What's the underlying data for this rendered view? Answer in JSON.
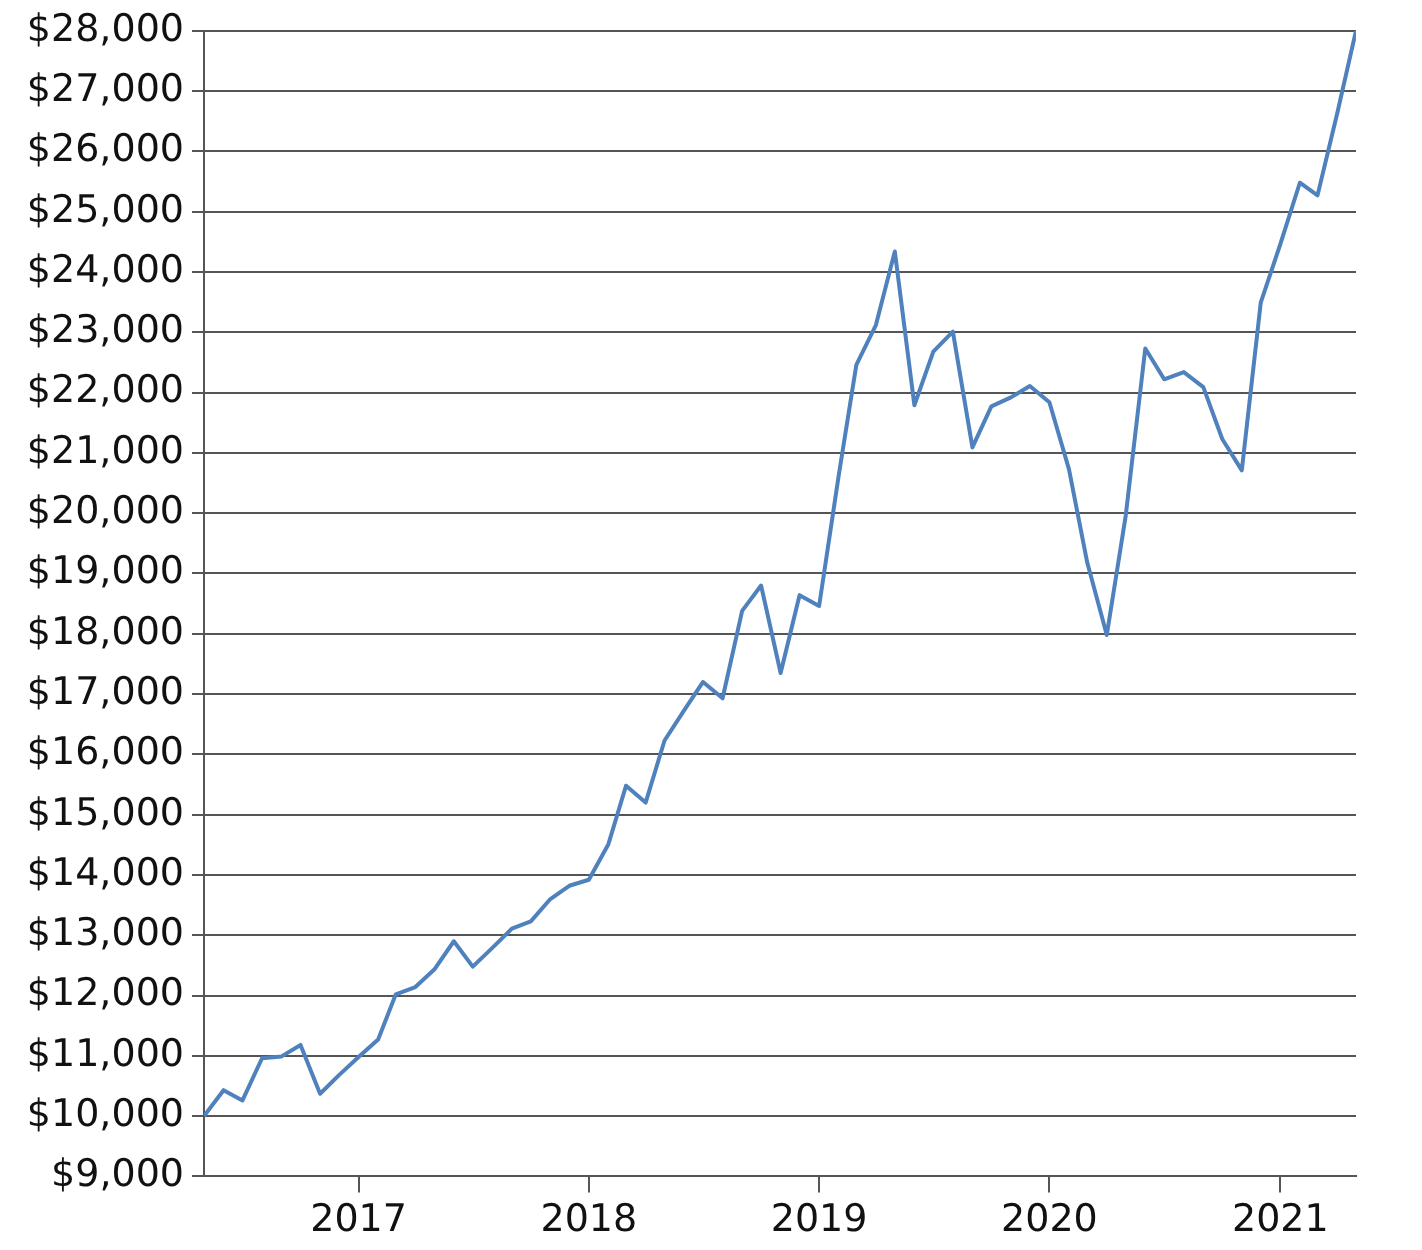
{
  "chart_data": {
    "type": "line",
    "x": [
      "2016-05",
      "2016-06",
      "2016-07",
      "2016-08",
      "2016-09",
      "2016-10",
      "2016-11",
      "2016-12",
      "2017-01",
      "2017-02",
      "2017-03",
      "2017-04",
      "2017-05",
      "2017-06",
      "2017-07",
      "2017-08",
      "2017-09",
      "2017-10",
      "2017-11",
      "2017-12",
      "2018-01",
      "2018-02",
      "2018-03",
      "2018-04",
      "2018-05",
      "2018-06",
      "2018-07",
      "2018-08",
      "2018-09",
      "2018-10",
      "2018-11",
      "2018-12",
      "2019-01",
      "2019-02",
      "2019-03",
      "2019-04",
      "2019-05",
      "2019-06",
      "2019-07",
      "2019-08",
      "2019-09",
      "2019-10",
      "2019-11",
      "2019-12",
      "2020-01",
      "2020-02",
      "2020-03",
      "2020-04",
      "2020-05",
      "2020-06",
      "2020-07",
      "2020-08",
      "2020-09",
      "2020-10",
      "2020-11",
      "2020-12",
      "2021-01",
      "2021-02",
      "2021-03",
      "2021-04",
      "2021-05"
    ],
    "series": [
      {
        "color": "#4f81bd",
        "values": [
          10000,
          10430,
          10260,
          10960,
          10990,
          11180,
          10370,
          10680,
          10980,
          11270,
          12020,
          12140,
          12430,
          12900,
          12480,
          12790,
          13110,
          13230,
          13600,
          13820,
          13920,
          14510,
          15480,
          15200,
          16230,
          16730,
          17200,
          16930,
          18380,
          18800,
          17350,
          18640,
          18460,
          20620,
          22460,
          23120,
          24340,
          21790,
          22680,
          23010,
          21090,
          21770,
          21920,
          22110,
          21840,
          20730,
          19180,
          17980,
          19960,
          22730,
          22220,
          22340,
          22090,
          21230,
          20710,
          23490,
          24460,
          25480,
          25270,
          26620,
          28000
        ]
      }
    ],
    "xlim": [
      "2016-05",
      "2021-05"
    ],
    "xticks": [
      {
        "value": "2017-01",
        "label": "2017"
      },
      {
        "value": "2018-01",
        "label": "2018"
      },
      {
        "value": "2019-01",
        "label": "2019"
      },
      {
        "value": "2020-01",
        "label": "2020"
      },
      {
        "value": "2021-01",
        "label": "2021"
      }
    ],
    "ylim": [
      9000,
      28000
    ],
    "yticks": [
      {
        "value": 9000,
        "label": "$9,000"
      },
      {
        "value": 10000,
        "label": "$10,000"
      },
      {
        "value": 11000,
        "label": "$11,000"
      },
      {
        "value": 12000,
        "label": "$12,000"
      },
      {
        "value": 13000,
        "label": "$13,000"
      },
      {
        "value": 14000,
        "label": "$14,000"
      },
      {
        "value": 15000,
        "label": "$15,000"
      },
      {
        "value": 16000,
        "label": "$16,000"
      },
      {
        "value": 17000,
        "label": "$17,000"
      },
      {
        "value": 18000,
        "label": "$18,000"
      },
      {
        "value": 19000,
        "label": "$19,000"
      },
      {
        "value": 20000,
        "label": "$20,000"
      },
      {
        "value": 21000,
        "label": "$21,000"
      },
      {
        "value": 22000,
        "label": "$22,000"
      },
      {
        "value": 23000,
        "label": "$23,000"
      },
      {
        "value": 24000,
        "label": "$24,000"
      },
      {
        "value": 25000,
        "label": "$25,000"
      },
      {
        "value": 26000,
        "label": "$26,000"
      },
      {
        "value": 27000,
        "label": "$27,000"
      },
      {
        "value": 28000,
        "label": "$28,000"
      }
    ],
    "grid": "y",
    "legend": false,
    "marker": "none",
    "line_style": "solid"
  }
}
